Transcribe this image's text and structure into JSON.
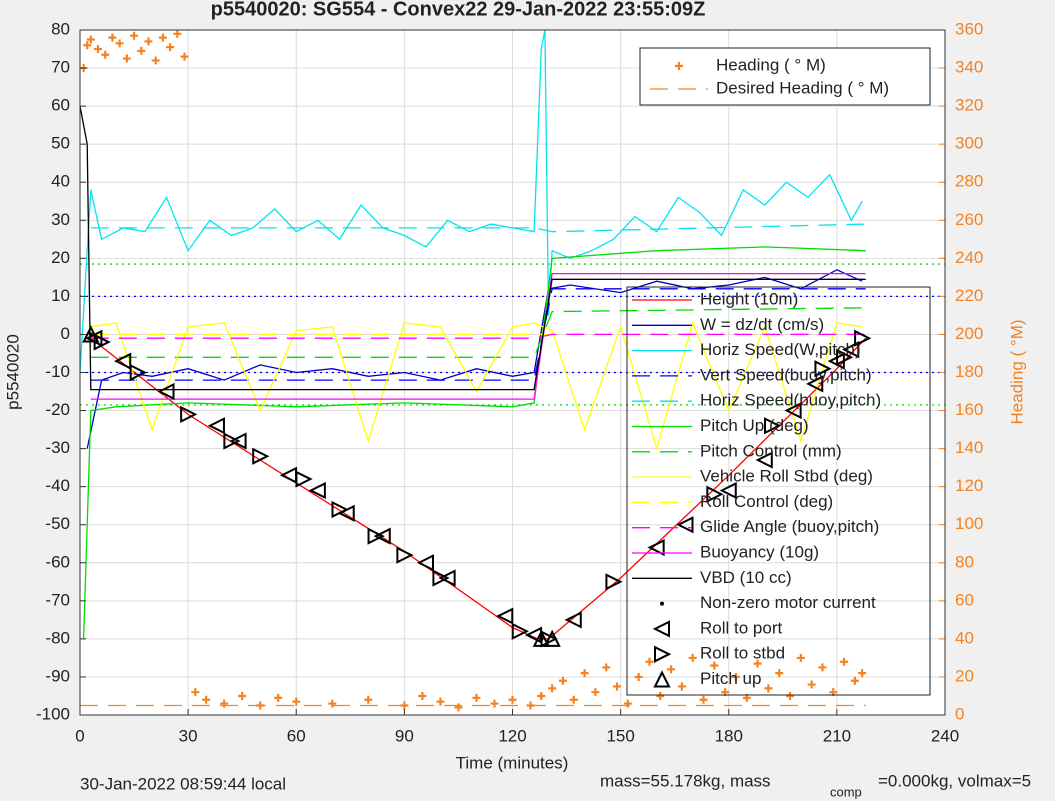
{
  "chart_data": {
    "type": "line",
    "title": "p5540020: SG554 - Convex22 29-Jan-2022 23:55:09Z",
    "xlabel": "Time (minutes)",
    "ylabel": "p5540020",
    "y2label": "Heading (  °M)",
    "footer": [
      "30-Jan-2022 08:59:44 local",
      "mass=55.178kg, mass",
      "comp",
      "=0.000kg, volmax=5"
    ],
    "xlim": [
      0,
      240
    ],
    "xticks": [
      0,
      30,
      60,
      90,
      120,
      150,
      180,
      210,
      240
    ],
    "ylim": [
      -100,
      80
    ],
    "yticks": [
      -100,
      -90,
      -80,
      -70,
      -60,
      -50,
      -40,
      -30,
      -20,
      -10,
      0,
      10,
      20,
      30,
      40,
      50,
      60,
      70,
      80
    ],
    "y2lim": [
      0,
      360
    ],
    "y2ticks": [
      0,
      20,
      40,
      60,
      80,
      100,
      120,
      140,
      160,
      180,
      200,
      220,
      240,
      260,
      280,
      300,
      320,
      340,
      360
    ],
    "grid": true,
    "reference_lines": [
      {
        "value": 10,
        "color": "#0000ff"
      },
      {
        "value": -10,
        "color": "#0000ff"
      },
      {
        "value": 18.5,
        "color": "#00dd00"
      },
      {
        "value": -18.5,
        "color": "#00dd00"
      }
    ],
    "series": [
      {
        "name": "Height (10m)",
        "color": "#ff0000",
        "style": "solid",
        "x": [
          3,
          30,
          60,
          90,
          120,
          127,
          130,
          150,
          180,
          210,
          218
        ],
        "values": [
          -1,
          -21,
          -39,
          -57,
          -77,
          -80,
          -80,
          -64,
          -37,
          -9,
          -1
        ]
      },
      {
        "name": "W = dz/dt (cm/s)",
        "color": "#0000cc",
        "style": "solid",
        "x": [
          2,
          6,
          12,
          20,
          30,
          40,
          50,
          60,
          70,
          80,
          90,
          100,
          110,
          120,
          126,
          130,
          136,
          150,
          160,
          170,
          180,
          190,
          200,
          210,
          217
        ],
        "values": [
          -30,
          -12,
          -10,
          -11,
          -9,
          -12,
          -8,
          -10,
          -9,
          -11,
          -10,
          -12,
          -9,
          -11,
          -10,
          12,
          13,
          11,
          14,
          12,
          13,
          15,
          12,
          17,
          14
        ]
      },
      {
        "name": "Horiz Speed(W,pitch)",
        "color": "#00e5ee",
        "style": "solid",
        "x": [
          0,
          3,
          6,
          12,
          18,
          24,
          30,
          36,
          42,
          48,
          54,
          60,
          66,
          72,
          78,
          84,
          90,
          96,
          102,
          108,
          114,
          120,
          126,
          128,
          129,
          130,
          131,
          136,
          142,
          148,
          154,
          160,
          166,
          172,
          178,
          184,
          190,
          196,
          202,
          208,
          214,
          217
        ],
        "values": [
          -10,
          38,
          25,
          28,
          27,
          36,
          22,
          30,
          26,
          28,
          33,
          27,
          30,
          25,
          34,
          28,
          26,
          23,
          30,
          27,
          29,
          28,
          27,
          75,
          80,
          5,
          22,
          20,
          22,
          25,
          31,
          27,
          36,
          32,
          26,
          38,
          34,
          40,
          36,
          42,
          30,
          35
        ]
      },
      {
        "name": "Vert Speed(buoy,pitch)",
        "color": "#0000ff",
        "style": "dashed",
        "x": [
          3,
          126,
          131,
          218
        ],
        "values": [
          -12,
          -12,
          12,
          12
        ]
      },
      {
        "name": "Horiz Speed(buoy,pitch)",
        "color": "#00e5ee",
        "style": "dashed",
        "x": [
          3,
          126,
          131,
          218
        ],
        "values": [
          28,
          28,
          27,
          29
        ]
      },
      {
        "name": "Pitch Up (deg)",
        "color": "#00dd00",
        "style": "solid",
        "x": [
          1,
          3,
          10,
          30,
          60,
          90,
          120,
          126,
          131,
          160,
          190,
          218
        ],
        "values": [
          -80,
          -20,
          -19,
          -18,
          -19,
          -18,
          -19,
          -18,
          20,
          22,
          23,
          22
        ]
      },
      {
        "name": "Pitch Control (mm)",
        "color": "#00dd00",
        "style": "dashed",
        "x": [
          3,
          126,
          131,
          218
        ],
        "values": [
          -6,
          -6,
          6,
          7
        ]
      },
      {
        "name": "Vehicle Roll Stbd (deg)",
        "color": "#ffff00",
        "style": "solid",
        "x": [
          3,
          10,
          20,
          30,
          40,
          50,
          60,
          70,
          80,
          90,
          100,
          110,
          120,
          126,
          131,
          140,
          150,
          160,
          170,
          180,
          190,
          200,
          210,
          217
        ],
        "values": [
          2,
          3,
          -25,
          2,
          3,
          -20,
          1,
          2,
          -28,
          3,
          2,
          -15,
          2,
          3,
          1,
          -25,
          2,
          -30,
          3,
          -20,
          2,
          -28,
          3,
          2
        ]
      },
      {
        "name": "Roll Control (deg)",
        "color": "#ffff00",
        "style": "dashed",
        "x": [
          3,
          126,
          131,
          218
        ],
        "values": [
          0,
          0,
          0,
          0
        ]
      },
      {
        "name": "Glide Angle (buoy,pitch)",
        "color": "#ff00ff",
        "style": "dashed",
        "x": [
          3,
          126,
          131,
          218
        ],
        "values": [
          -1,
          -1,
          0,
          0
        ]
      },
      {
        "name": "Buoyancy (10g)",
        "color": "#ff00ff",
        "style": "solid",
        "x": [
          3,
          126,
          131,
          218
        ],
        "values": [
          -17,
          -17,
          16,
          16
        ]
      },
      {
        "name": "VBD (10 cc)",
        "color": "#000000",
        "style": "solid",
        "x": [
          0,
          2,
          3,
          126,
          131,
          218
        ],
        "values": [
          60,
          50,
          -14.5,
          -14.5,
          14.5,
          14.5
        ]
      },
      {
        "name": "Non-zero motor current",
        "color": "#000000",
        "style": "dot",
        "x": [
          3,
          128
        ],
        "values": [
          0,
          -80
        ]
      },
      {
        "name": "Roll to port",
        "color": "#000000",
        "style": "tri-left",
        "x": [
          4,
          12,
          24,
          38,
          44,
          58,
          66,
          74,
          84,
          96,
          102,
          118,
          126,
          137,
          160,
          168,
          180,
          190,
          198,
          204,
          210,
          214
        ],
        "values": [
          -1,
          -7,
          -15,
          -24,
          -28,
          -37,
          -41,
          -47,
          -53,
          -60,
          -64,
          -74,
          -79,
          -75,
          -56,
          -50,
          -41,
          -33,
          -20,
          -13,
          -7,
          -4
        ]
      },
      {
        "name": "Roll to stbd",
        "color": "#000000",
        "style": "tri-right",
        "x": [
          6,
          16,
          30,
          42,
          50,
          62,
          72,
          82,
          90,
          100,
          122,
          130,
          148,
          176,
          192,
          206,
          212,
          217
        ],
        "values": [
          -2,
          -10,
          -21,
          -28,
          -32,
          -38,
          -46,
          -53,
          -58,
          -64,
          -78,
          -80,
          -65,
          -42,
          -24,
          -9,
          -6,
          -1
        ]
      },
      {
        "name": "Pitch up",
        "color": "#000000",
        "style": "tri-up",
        "x": [
          3,
          128,
          131
        ],
        "values": [
          0,
          -80,
          -80
        ]
      },
      {
        "name": "Heading (  ° M)",
        "color": "#f58220",
        "style": "plus",
        "axis": "y2",
        "x": [
          1,
          2,
          3,
          5,
          7,
          9,
          11,
          13,
          15,
          17,
          19,
          21,
          23,
          25,
          27,
          29,
          32,
          35,
          40,
          45,
          50,
          55,
          60,
          70,
          80,
          90,
          95,
          100,
          105,
          110,
          115,
          120,
          125,
          128,
          131,
          134,
          137,
          140,
          143,
          146,
          149,
          152,
          155,
          158,
          161,
          164,
          167,
          170,
          173,
          176,
          179,
          182,
          185,
          188,
          191,
          194,
          197,
          200,
          203,
          206,
          209,
          212,
          215,
          217
        ],
        "values": [
          340,
          352,
          355,
          350,
          347,
          356,
          353,
          345,
          357,
          349,
          354,
          344,
          356,
          351,
          358,
          346,
          12,
          8,
          6,
          10,
          5,
          9,
          7,
          6,
          8,
          5,
          10,
          7,
          4,
          9,
          6,
          8,
          5,
          10,
          14,
          18,
          8,
          22,
          12,
          25,
          15,
          6,
          20,
          28,
          10,
          24,
          15,
          30,
          8,
          26,
          12,
          20,
          9,
          27,
          14,
          22,
          10,
          30,
          16,
          25,
          12,
          28,
          18,
          22
        ]
      },
      {
        "name": "Desired Heading (    ° M)",
        "color": "#f58220",
        "style": "dashed",
        "axis": "y2",
        "x": [
          0,
          218
        ],
        "values": [
          5,
          5
        ]
      }
    ]
  }
}
